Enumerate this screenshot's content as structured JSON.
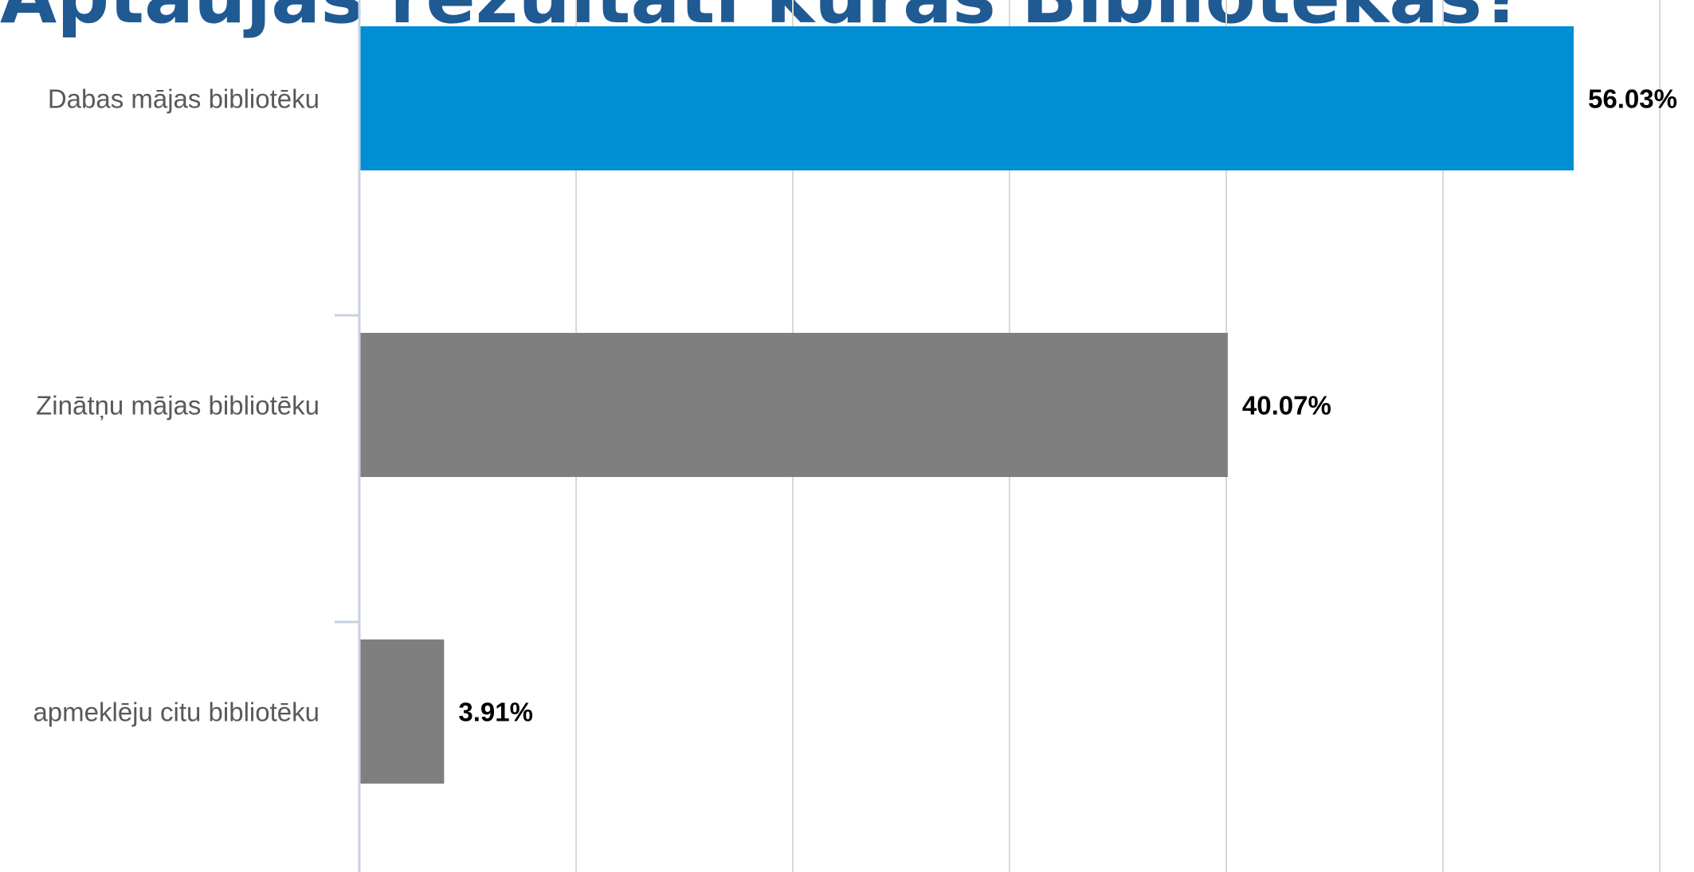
{
  "title": "Aptaujas rezultāti kurās Bibliotēkas?",
  "chart_data": {
    "type": "bar",
    "orientation": "horizontal",
    "title": "Aptaujas rezultāti kurās Bibliotēkas?",
    "categories": [
      "Dabas mājas bibliotēku",
      "Zinātņu mājas bibliotēku",
      "apmeklēju citu bibliotēku"
    ],
    "values": [
      56.03,
      40.07,
      3.91
    ],
    "value_labels": [
      "56.03%",
      "40.07%",
      "3.91%"
    ],
    "bar_colors": [
      "#008fd5",
      "#7f7f7f",
      "#7f7f7f"
    ],
    "xlabel": "",
    "ylabel": "",
    "xlim": [
      0,
      60
    ],
    "grid": true,
    "tick_labels_shown": false
  }
}
